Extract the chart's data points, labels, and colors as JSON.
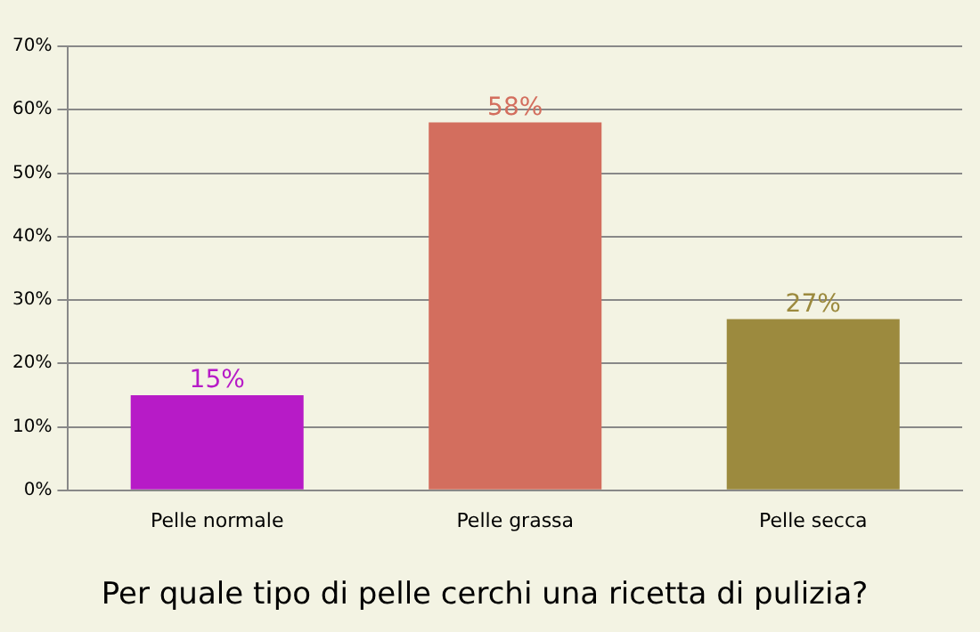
{
  "chart_data": {
    "type": "bar",
    "title": "Per quale tipo di pelle cerchi una ricetta di pulizia?",
    "categories": [
      "Pelle normale",
      "Pelle grassa",
      "Pelle secca"
    ],
    "values": [
      15,
      58,
      27
    ],
    "colors": [
      "#b71bc7",
      "#d36e5e",
      "#9c8a3e"
    ],
    "value_labels": [
      "15%",
      "58%",
      "27%"
    ],
    "ylim": [
      0,
      70
    ],
    "yticks": [
      {
        "value": 0,
        "label": "0%"
      },
      {
        "value": 10,
        "label": "10%"
      },
      {
        "value": 20,
        "label": "20%"
      },
      {
        "value": 30,
        "label": "30%"
      },
      {
        "value": 40,
        "label": "40%"
      },
      {
        "value": 50,
        "label": "50%"
      },
      {
        "value": 60,
        "label": "60%"
      },
      {
        "value": 70,
        "label": "70%"
      }
    ],
    "grid": "y",
    "legend": false
  }
}
